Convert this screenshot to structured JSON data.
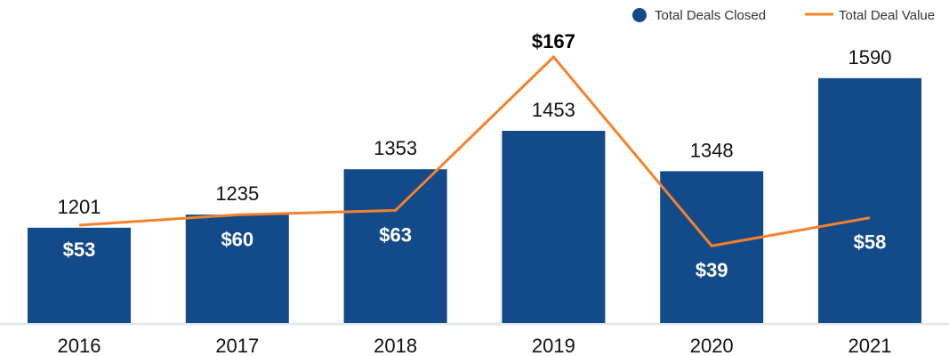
{
  "chart_data": {
    "type": "bar",
    "title": "",
    "xlabel": "",
    "ylabel": "",
    "categories": [
      "2016",
      "2017",
      "2018",
      "2019",
      "2020",
      "2021"
    ],
    "series": [
      {
        "name": "Total Deals Closed",
        "kind": "bar",
        "values": [
          1201,
          1235,
          1353,
          1453,
          1348,
          1590
        ],
        "labels": [
          "1201",
          "1235",
          "1353",
          "1453",
          "1348",
          "1590"
        ],
        "color": "#134a8a"
      },
      {
        "name": "Total Deal Value",
        "kind": "line",
        "values": [
          53,
          60,
          63,
          167,
          39,
          58
        ],
        "labels": [
          "$53",
          "$60",
          "$63",
          "$167",
          "$39",
          "$58"
        ],
        "color": "#f5822a"
      }
    ],
    "bar_axis_min": 953,
    "grid": false,
    "legend_position": "top-right"
  }
}
